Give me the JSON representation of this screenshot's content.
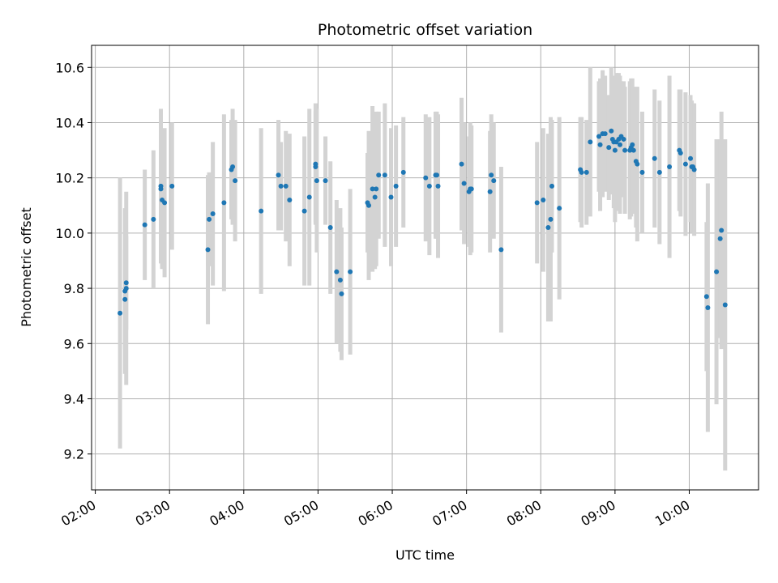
{
  "chart_data": {
    "type": "scatter",
    "title": "Photometric offset variation",
    "xlabel": "UTC time",
    "ylabel": "Photometric offset",
    "xlim": [
      "01:57",
      "10:56"
    ],
    "ylim": [
      9.07,
      10.68
    ],
    "x_ticks": [
      "02:00",
      "03:00",
      "04:00",
      "05:00",
      "06:00",
      "07:00",
      "08:00",
      "09:00",
      "10:00"
    ],
    "y_ticks": [
      9.2,
      9.4,
      9.6,
      9.8,
      10.0,
      10.2,
      10.4,
      10.6
    ],
    "grid": true,
    "colors": {
      "point": "#1f77b4",
      "errorbar": "#d3d3d3",
      "grid": "#b0b0b0"
    },
    "series": [
      {
        "points": [
          {
            "x": "02:20",
            "y": 9.71,
            "err": 0.49
          },
          {
            "x": "02:24",
            "y": 9.76,
            "err": 0.18
          },
          {
            "x": "02:24",
            "y": 9.79,
            "err": 0.3
          },
          {
            "x": "02:25",
            "y": 9.8,
            "err": 0.35
          },
          {
            "x": "02:25",
            "y": 9.82,
            "err": 0.17
          },
          {
            "x": "02:40",
            "y": 10.03,
            "err": 0.2
          },
          {
            "x": "02:47",
            "y": 10.05,
            "err": 0.25
          },
          {
            "x": "02:53",
            "y": 10.16,
            "err": 0.15
          },
          {
            "x": "02:53",
            "y": 10.17,
            "err": 0.28
          },
          {
            "x": "02:54",
            "y": 10.12,
            "err": 0.25
          },
          {
            "x": "02:56",
            "y": 10.11,
            "err": 0.27
          },
          {
            "x": "03:02",
            "y": 10.17,
            "err": 0.23
          },
          {
            "x": "03:31",
            "y": 9.94,
            "err": 0.27
          },
          {
            "x": "03:32",
            "y": 10.05,
            "err": 0.17
          },
          {
            "x": "03:35",
            "y": 10.07,
            "err": 0.26
          },
          {
            "x": "03:44",
            "y": 10.11,
            "err": 0.32
          },
          {
            "x": "03:50",
            "y": 10.23,
            "err": 0.18
          },
          {
            "x": "03:51",
            "y": 10.24,
            "err": 0.21
          },
          {
            "x": "03:53",
            "y": 10.19,
            "err": 0.22
          },
          {
            "x": "04:14",
            "y": 10.08,
            "err": 0.3
          },
          {
            "x": "04:28",
            "y": 10.21,
            "err": 0.2
          },
          {
            "x": "04:30",
            "y": 10.17,
            "err": 0.16
          },
          {
            "x": "04:34",
            "y": 10.17,
            "err": 0.2
          },
          {
            "x": "04:37",
            "y": 10.12,
            "err": 0.24
          },
          {
            "x": "04:49",
            "y": 10.08,
            "err": 0.27
          },
          {
            "x": "04:53",
            "y": 10.13,
            "err": 0.32
          },
          {
            "x": "04:58",
            "y": 10.24,
            "err": 0.2
          },
          {
            "x": "04:58",
            "y": 10.25,
            "err": 0.22
          },
          {
            "x": "04:59",
            "y": 10.19,
            "err": 0.26
          },
          {
            "x": "05:06",
            "y": 10.19,
            "err": 0.16
          },
          {
            "x": "05:10",
            "y": 10.02,
            "err": 0.24
          },
          {
            "x": "05:15",
            "y": 9.86,
            "err": 0.26
          },
          {
            "x": "05:18",
            "y": 9.83,
            "err": 0.26
          },
          {
            "x": "05:19",
            "y": 9.78,
            "err": 0.24
          },
          {
            "x": "05:26",
            "y": 9.86,
            "err": 0.3
          },
          {
            "x": "05:40",
            "y": 10.11,
            "err": 0.18
          },
          {
            "x": "05:41",
            "y": 10.1,
            "err": 0.27
          },
          {
            "x": "05:44",
            "y": 10.16,
            "err": 0.3
          },
          {
            "x": "05:46",
            "y": 10.13,
            "err": 0.26
          },
          {
            "x": "05:47",
            "y": 10.16,
            "err": 0.28
          },
          {
            "x": "05:49",
            "y": 10.21,
            "err": 0.23
          },
          {
            "x": "05:54",
            "y": 10.21,
            "err": 0.26
          },
          {
            "x": "05:59",
            "y": 10.13,
            "err": 0.25
          },
          {
            "x": "06:03",
            "y": 10.17,
            "err": 0.22
          },
          {
            "x": "06:09",
            "y": 10.22,
            "err": 0.2
          },
          {
            "x": "06:27",
            "y": 10.2,
            "err": 0.23
          },
          {
            "x": "06:30",
            "y": 10.17,
            "err": 0.25
          },
          {
            "x": "06:35",
            "y": 10.21,
            "err": 0.23
          },
          {
            "x": "06:36",
            "y": 10.21,
            "err": 0.23
          },
          {
            "x": "06:37",
            "y": 10.17,
            "err": 0.26
          },
          {
            "x": "06:56",
            "y": 10.25,
            "err": 0.24
          },
          {
            "x": "06:58",
            "y": 10.18,
            "err": 0.22
          },
          {
            "x": "07:02",
            "y": 10.15,
            "err": 0.2
          },
          {
            "x": "07:03",
            "y": 10.16,
            "err": 0.24
          },
          {
            "x": "07:04",
            "y": 10.16,
            "err": 0.23
          },
          {
            "x": "07:19",
            "y": 10.15,
            "err": 0.22
          },
          {
            "x": "07:20",
            "y": 10.21,
            "err": 0.22
          },
          {
            "x": "07:22",
            "y": 10.19,
            "err": 0.21
          },
          {
            "x": "07:28",
            "y": 9.94,
            "err": 0.3
          },
          {
            "x": "07:57",
            "y": 10.11,
            "err": 0.22
          },
          {
            "x": "08:02",
            "y": 10.12,
            "err": 0.26
          },
          {
            "x": "08:06",
            "y": 10.02,
            "err": 0.34
          },
          {
            "x": "08:08",
            "y": 10.05,
            "err": 0.37
          },
          {
            "x": "08:09",
            "y": 10.17,
            "err": 0.24
          },
          {
            "x": "08:15",
            "y": 10.09,
            "err": 0.33
          },
          {
            "x": "08:32",
            "y": 10.23,
            "err": 0.19
          },
          {
            "x": "08:33",
            "y": 10.22,
            "err": 0.2
          },
          {
            "x": "08:37",
            "y": 10.22,
            "err": 0.19
          },
          {
            "x": "08:40",
            "y": 10.33,
            "err": 0.27
          },
          {
            "x": "08:47",
            "y": 10.35,
            "err": 0.2
          },
          {
            "x": "08:48",
            "y": 10.32,
            "err": 0.24
          },
          {
            "x": "08:50",
            "y": 10.36,
            "err": 0.23
          },
          {
            "x": "08:52",
            "y": 10.36,
            "err": 0.21
          },
          {
            "x": "08:55",
            "y": 10.31,
            "err": 0.19
          },
          {
            "x": "08:57",
            "y": 10.37,
            "err": 0.23
          },
          {
            "x": "08:58",
            "y": 10.34,
            "err": 0.19
          },
          {
            "x": "08:59",
            "y": 10.33,
            "err": 0.24
          },
          {
            "x": "09:00",
            "y": 10.3,
            "err": 0.26
          },
          {
            "x": "09:01",
            "y": 10.33,
            "err": 0.25
          },
          {
            "x": "09:03",
            "y": 10.34,
            "err": 0.24
          },
          {
            "x": "09:04",
            "y": 10.32,
            "err": 0.25
          },
          {
            "x": "09:05",
            "y": 10.35,
            "err": 0.2
          },
          {
            "x": "09:07",
            "y": 10.34,
            "err": 0.21
          },
          {
            "x": "09:08",
            "y": 10.3,
            "err": 0.23
          },
          {
            "x": "09:12",
            "y": 10.3,
            "err": 0.25
          },
          {
            "x": "09:13",
            "y": 10.31,
            "err": 0.25
          },
          {
            "x": "09:14",
            "y": 10.32,
            "err": 0.24
          },
          {
            "x": "09:15",
            "y": 10.3,
            "err": 0.23
          },
          {
            "x": "09:17",
            "y": 10.26,
            "err": 0.24
          },
          {
            "x": "09:18",
            "y": 10.25,
            "err": 0.28
          },
          {
            "x": "09:22",
            "y": 10.22,
            "err": 0.22
          },
          {
            "x": "09:32",
            "y": 10.27,
            "err": 0.25
          },
          {
            "x": "09:36",
            "y": 10.22,
            "err": 0.26
          },
          {
            "x": "09:44",
            "y": 10.24,
            "err": 0.33
          },
          {
            "x": "09:52",
            "y": 10.3,
            "err": 0.22
          },
          {
            "x": "09:53",
            "y": 10.29,
            "err": 0.23
          },
          {
            "x": "09:57",
            "y": 10.25,
            "err": 0.26
          },
          {
            "x": "10:01",
            "y": 10.27,
            "err": 0.23
          },
          {
            "x": "10:02",
            "y": 10.24,
            "err": 0.24
          },
          {
            "x": "10:03",
            "y": 10.24,
            "err": 0.23
          },
          {
            "x": "10:04",
            "y": 10.23,
            "err": 0.24
          },
          {
            "x": "10:14",
            "y": 9.77,
            "err": 0.27
          },
          {
            "x": "10:15",
            "y": 9.73,
            "err": 0.45
          },
          {
            "x": "10:22",
            "y": 9.86,
            "err": 0.48
          },
          {
            "x": "10:25",
            "y": 9.98,
            "err": 0.36
          },
          {
            "x": "10:26",
            "y": 10.01,
            "err": 0.43
          },
          {
            "x": "10:29",
            "y": 9.74,
            "err": 0.6
          }
        ]
      }
    ]
  }
}
